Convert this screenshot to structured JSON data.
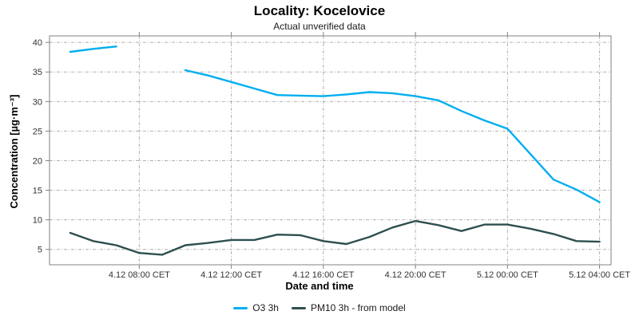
{
  "chart_data": {
    "type": "line",
    "title": "Locality: Kocelovice",
    "subtitle": "Actual unverified data",
    "xlabel": "Date and time",
    "ylabel": "Concentration [µg·m⁻³]",
    "grid": true,
    "legend_position": "bottom",
    "x_unit": "hours since 4.12 00:00 CET",
    "x": [
      5,
      6,
      7,
      8,
      9,
      10,
      11,
      12,
      13,
      14,
      15,
      16,
      17,
      18,
      19,
      20,
      21,
      22,
      23,
      24,
      25,
      26,
      27,
      28
    ],
    "x_range": [
      4.1,
      28.5
    ],
    "x_ticks": [
      {
        "value": 8,
        "label": "4.12 08:00 CET"
      },
      {
        "value": 12,
        "label": "4.12 12:00 CET"
      },
      {
        "value": 16,
        "label": "4.12 16:00 CET"
      },
      {
        "value": 20,
        "label": "4.12 20:00 CET"
      },
      {
        "value": 24,
        "label": "5.12 00:00 CET"
      },
      {
        "value": 28,
        "label": "5.12 04:00 CET"
      }
    ],
    "y_ticks": [
      5,
      10,
      15,
      20,
      25,
      30,
      35,
      40
    ],
    "y_range": [
      2.4,
      41.1
    ],
    "series": [
      {
        "name": "O3 3h",
        "color": "#00AEEF",
        "values": [
          38.4,
          38.9,
          39.3,
          null,
          null,
          35.3,
          34.4,
          33.3,
          32.2,
          31.1,
          31.0,
          30.9,
          31.2,
          31.6,
          31.4,
          30.9,
          30.2,
          28.4,
          26.8,
          25.4,
          21.1,
          16.8,
          15.1,
          13.0
        ]
      },
      {
        "name": "PM10 3h - from model",
        "color": "#2F4F4F",
        "values": [
          7.8,
          6.4,
          5.7,
          4.4,
          4.1,
          5.7,
          6.1,
          6.6,
          6.6,
          7.5,
          7.4,
          6.4,
          5.9,
          7.1,
          8.7,
          9.8,
          9.1,
          8.1,
          9.2,
          9.2,
          8.5,
          7.6,
          6.4,
          6.3
        ]
      }
    ],
    "style": {
      "grid_color": "#b0b0b0",
      "axis_color": "#808080",
      "tick_label_color": "#333333"
    }
  }
}
